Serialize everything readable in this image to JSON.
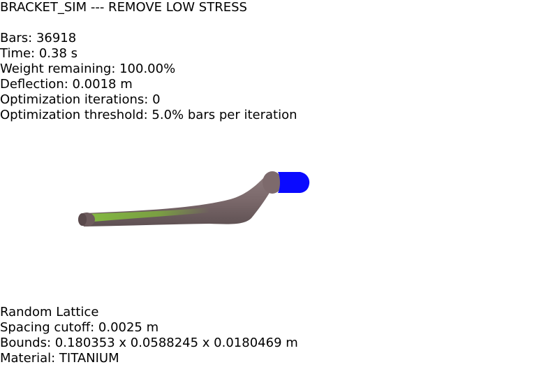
{
  "header": {
    "title": "BRACKET_SIM --- REMOVE LOW STRESS"
  },
  "stats": {
    "bars": "Bars: 36918",
    "time": "Time: 0.38 s",
    "weight": "Weight remaining: 100.00%",
    "deflection": "Deflection: 0.0018 m",
    "iterations": "Optimization iterations: 0",
    "threshold": "Optimization threshold: 5.0% bars per iteration"
  },
  "footer": {
    "lattice": "Random Lattice",
    "spacing": "Spacing cutoff: 0.0025 m",
    "bounds": "Bounds: 0.180353 x 0.0588245 x 0.0180469 m",
    "material": "Material: TITANIUM"
  },
  "colors": {
    "body": "#7d6a6c",
    "body_dark": "#5b4d4f",
    "low_stress": "#7fb43a",
    "fixed_end": "#0a0aff"
  }
}
